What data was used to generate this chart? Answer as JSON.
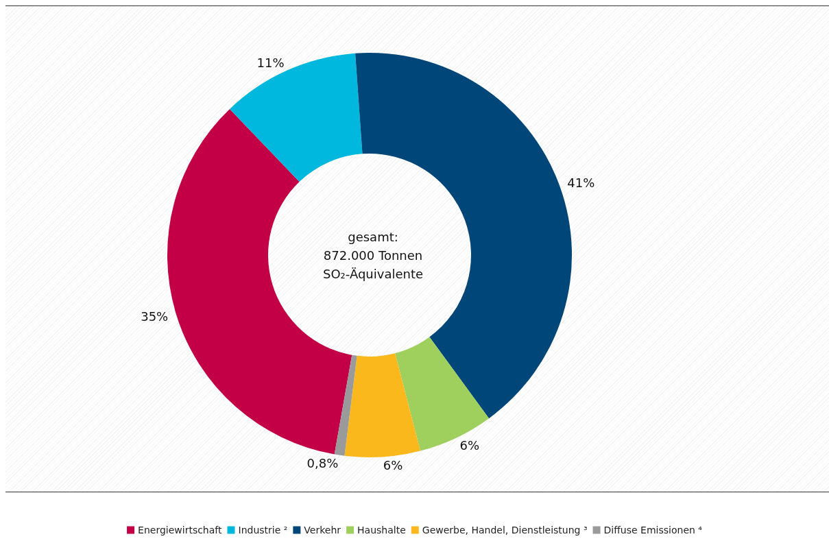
{
  "chart_data": {
    "type": "donut",
    "categories": [
      "Energiewirtschaft",
      "Industrie ²",
      "Verkehr",
      "Haushalte",
      "Gewerbe, Handel, Dienstleistung ³",
      "Diffuse Emissionen ⁴"
    ],
    "values": [
      35,
      11,
      41,
      6,
      6,
      0.8
    ],
    "colors": [
      "#c30045",
      "#00b8de",
      "#004678",
      "#9fcf5d",
      "#fbb81c",
      "#9a9a9a"
    ],
    "value_labels": [
      "35%",
      "11%",
      "41%",
      "6%",
      "6%",
      "0,8%"
    ],
    "annotations": [
      "gesamt:\n872.000 Tonnen\nSO₂-Äquivalente"
    ],
    "legend": "bottom"
  }
}
